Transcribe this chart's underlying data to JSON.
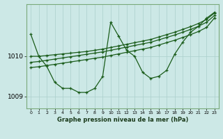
{
  "xlabel": "Graphe pression niveau de la mer (hPa)",
  "x_ticks": [
    0,
    1,
    2,
    3,
    4,
    5,
    6,
    7,
    8,
    9,
    10,
    11,
    12,
    13,
    14,
    15,
    16,
    17,
    18,
    19,
    20,
    21,
    22,
    23
  ],
  "ylim": [
    1008.7,
    1011.3
  ],
  "yticks": [
    1009,
    1010
  ],
  "xlim": [
    -0.5,
    23.5
  ],
  "bg_color": "#cce8e6",
  "line_color": "#1a5c1a",
  "grid_color": "#aacfcc",
  "s_zigzag": [
    1010.55,
    1010.0,
    1009.75,
    1009.35,
    1009.2,
    1009.2,
    1009.1,
    1009.1,
    1009.2,
    1009.5,
    1010.85,
    1010.5,
    1010.15,
    1010.0,
    1009.6,
    1009.45,
    1009.5,
    1009.65,
    1010.05,
    1010.35,
    1010.6,
    1010.75,
    1010.95,
    1011.1
  ],
  "s_line1": [
    1010.0,
    1010.0,
    1010.02,
    1010.04,
    1010.06,
    1010.08,
    1010.1,
    1010.12,
    1010.15,
    1010.18,
    1010.22,
    1010.26,
    1010.3,
    1010.34,
    1010.38,
    1010.42,
    1010.48,
    1010.54,
    1010.6,
    1010.67,
    1010.74,
    1010.82,
    1010.92,
    1011.08
  ],
  "s_line2": [
    1009.85,
    1009.87,
    1009.9,
    1009.93,
    1009.96,
    1009.99,
    1010.02,
    1010.05,
    1010.08,
    1010.11,
    1010.15,
    1010.19,
    1010.23,
    1010.27,
    1010.31,
    1010.35,
    1010.41,
    1010.47,
    1010.53,
    1010.6,
    1010.67,
    1010.75,
    1010.85,
    1011.02
  ],
  "s_line3": [
    1009.72,
    1009.74,
    1009.77,
    1009.8,
    1009.83,
    1009.86,
    1009.89,
    1009.92,
    1009.95,
    1009.98,
    1010.02,
    1010.06,
    1010.1,
    1010.14,
    1010.18,
    1010.22,
    1010.28,
    1010.34,
    1010.4,
    1010.47,
    1010.54,
    1010.62,
    1010.72,
    1010.96
  ]
}
